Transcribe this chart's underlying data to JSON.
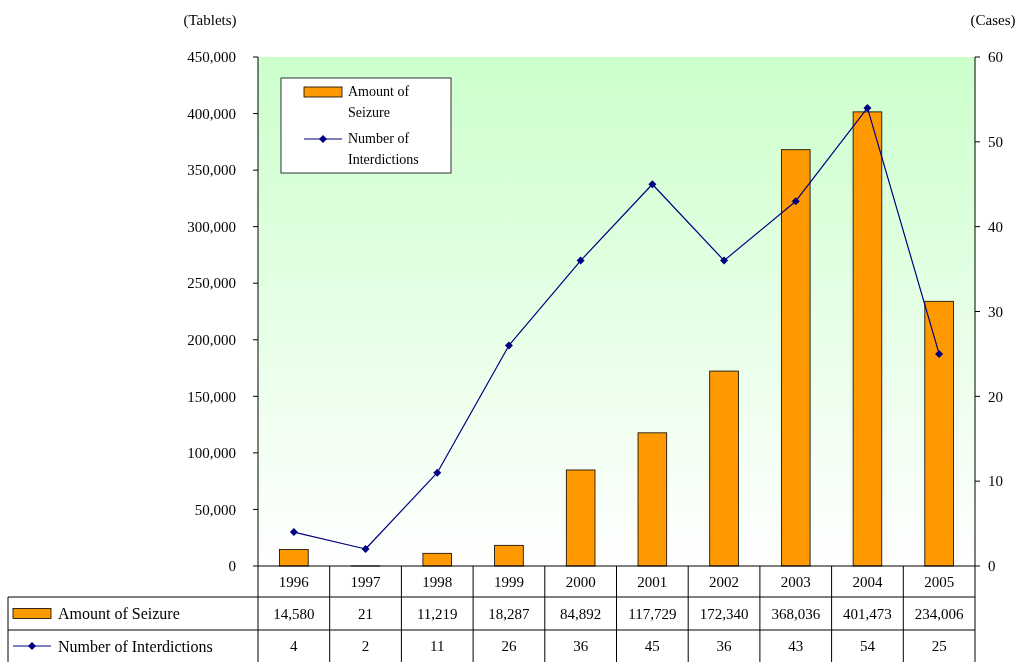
{
  "chart_data": {
    "type": "bar",
    "categories": [
      "1996",
      "1997",
      "1998",
      "1999",
      "2000",
      "2001",
      "2002",
      "2003",
      "2004",
      "2005"
    ],
    "series": [
      {
        "name": "Amount of Seizure",
        "color": "#ff9900",
        "values": [
          14580,
          21,
          11219,
          18287,
          84892,
          117729,
          172340,
          368036,
          401473,
          234006
        ],
        "value_labels": [
          "14,580",
          "21",
          "11,219",
          "18,287",
          "84,892",
          "117,729",
          "172,340",
          "368,036",
          "401,473",
          "234,006"
        ]
      },
      {
        "name": "Number of Interdictions",
        "type": "line",
        "axis": "y2",
        "color": "#000080",
        "values": [
          4,
          2,
          11,
          26,
          36,
          45,
          36,
          43,
          54,
          25
        ]
      }
    ],
    "ylabel": "(Tablets)",
    "y2label": "(Cases)",
    "ylim": [
      0,
      450000
    ],
    "yticks": [
      0,
      {
        "value": 50000,
        "label": "50,000"
      },
      {
        "value": 100000,
        "label": "100,000"
      },
      {
        "value": 150000,
        "label": "150,000"
      },
      {
        "value": 200000,
        "label": "200,000"
      },
      {
        "value": 250000,
        "label": "250,000"
      },
      {
        "value": 300000,
        "label": "300,000"
      },
      {
        "value": 350000,
        "label": "350,000"
      },
      {
        "value": 400000,
        "label": "400,000"
      },
      {
        "value": 450000,
        "label": "450,000"
      }
    ],
    "y2lim": [
      0,
      60
    ],
    "y2ticks": [
      0,
      10,
      20,
      30,
      40,
      50,
      60
    ],
    "legend": "top left",
    "marker": "diamond",
    "data_labels": true
  }
}
